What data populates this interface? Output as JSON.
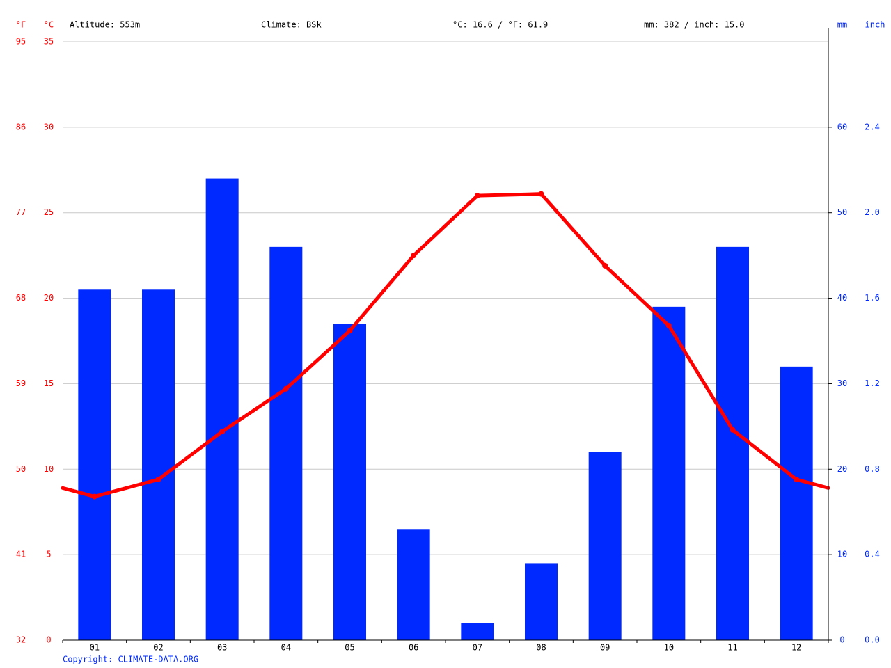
{
  "header": {
    "altitude": "Altitude: 553m",
    "climate": "Climate: BSk",
    "temperature": "°C: 16.6 / °F: 61.9",
    "precipitation": "mm: 382 / inch: 15.0"
  },
  "chart_data": {
    "type": "combo",
    "categories": [
      "01",
      "02",
      "03",
      "04",
      "05",
      "06",
      "07",
      "08",
      "09",
      "10",
      "11",
      "12"
    ],
    "series": [
      {
        "type": "bar",
        "axis": "y2",
        "color": "#0029ff",
        "values": [
          41,
          41,
          54,
          46,
          37,
          13,
          2,
          9,
          22,
          39,
          46,
          32
        ]
      },
      {
        "type": "line",
        "color": "#ff0000",
        "values": [
          8.4,
          9.4,
          12.2,
          14.7,
          18.1,
          22.5,
          26.0,
          26.1,
          21.9,
          18.4,
          12.3,
          9.4
        ]
      }
    ],
    "y_label": "°C",
    "y_label_f": "°F",
    "y2_label": "mm",
    "y2_label_inch": "inch",
    "ylim": [
      0,
      35
    ],
    "yticks": [
      0,
      5,
      10,
      15,
      20,
      25,
      30,
      35
    ],
    "yticks_f": [
      {
        "value": 0,
        "label": "32"
      },
      {
        "value": 5,
        "label": "41"
      },
      {
        "value": 10,
        "label": "50"
      },
      {
        "value": 15,
        "label": "59"
      },
      {
        "value": 20,
        "label": "68"
      },
      {
        "value": 25,
        "label": "77"
      },
      {
        "value": 30,
        "label": "86"
      },
      {
        "value": 35,
        "label": "95"
      }
    ],
    "y2lim": [
      0,
      70
    ],
    "y2ticks": [
      0,
      10,
      20,
      30,
      40,
      50,
      60
    ],
    "y2ticks_inch": [
      {
        "value": 0,
        "label": "0.0"
      },
      {
        "value": 10,
        "label": "0.4"
      },
      {
        "value": 20,
        "label": "0.8"
      },
      {
        "value": 30,
        "label": "1.2"
      },
      {
        "value": 40,
        "label": "1.6"
      },
      {
        "value": 50,
        "label": "2.0"
      },
      {
        "value": 60,
        "label": "2.4"
      }
    ],
    "grid": true,
    "temp_axis_color": "#ff0000",
    "precip_axis_color": "#0029ff"
  },
  "copyright": "Copyright: CLIMATE-DATA.ORG"
}
